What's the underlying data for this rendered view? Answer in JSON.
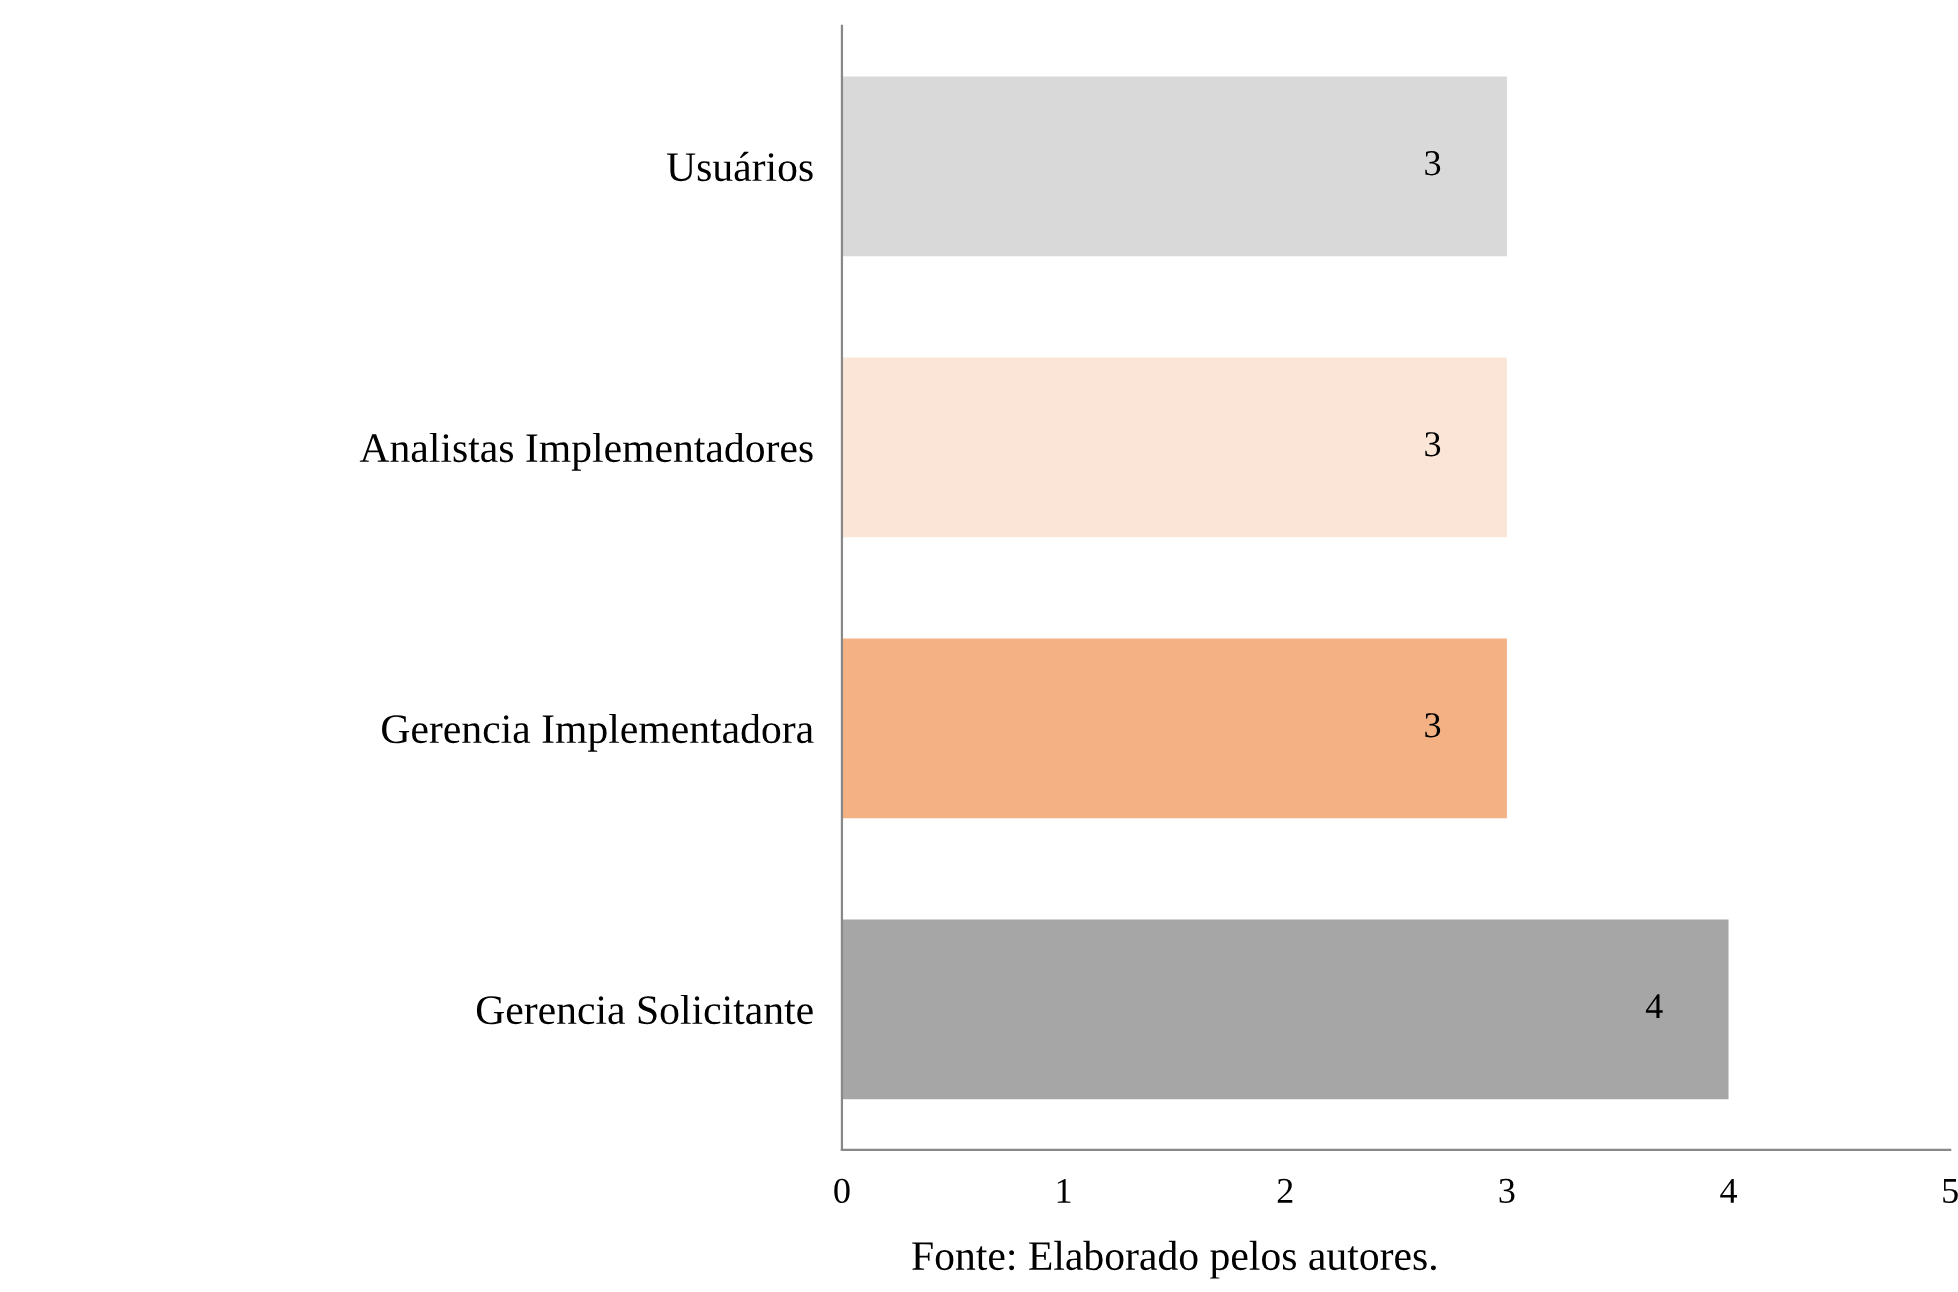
{
  "chart_data": {
    "type": "bar",
    "orientation": "horizontal",
    "categories": [
      "Usuários",
      "Analistas Implementadores",
      "Gerencia Implementadora",
      "Gerencia Solicitante"
    ],
    "values": [
      3,
      3,
      3,
      4
    ],
    "colors": [
      "#d9d9d9",
      "#fbe5d6",
      "#f4b183",
      "#a6a6a6"
    ],
    "xlim": [
      0,
      5
    ],
    "xticks": [
      0,
      1,
      2,
      3,
      4,
      5
    ],
    "data_labels": true,
    "grid": false,
    "legend": false,
    "annotations": [
      "Fonte: Elaborado pelos autores."
    ]
  }
}
